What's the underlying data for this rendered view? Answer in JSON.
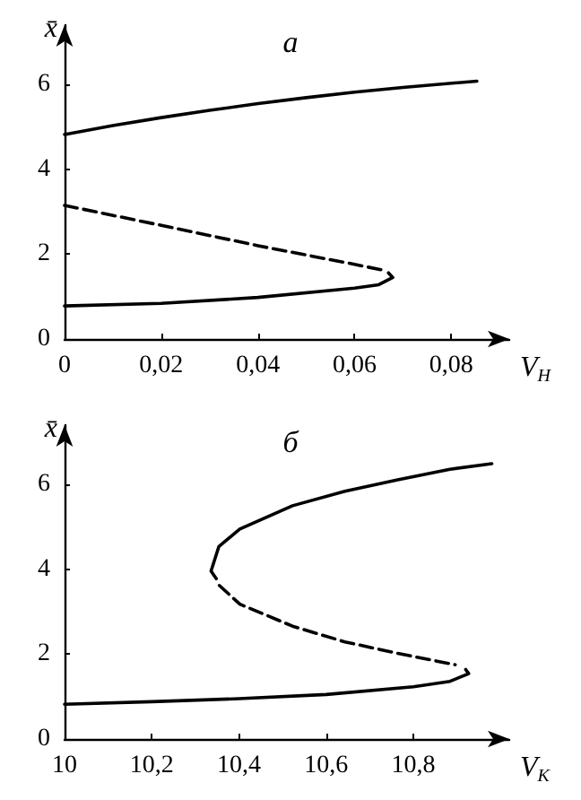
{
  "chart_data": [
    {
      "type": "line",
      "title": "а",
      "xlabel": "V$_{Н}$",
      "ylabel": "x̄",
      "marker": "none",
      "grid": false,
      "xlim": [
        0,
        0.092
      ],
      "ylim": [
        0,
        7.4
      ],
      "xticks": [
        0,
        {
          "value": 0.02,
          "label": "0,02"
        },
        {
          "value": 0.04,
          "label": "0,04"
        },
        {
          "value": 0.06,
          "label": "0,06"
        },
        {
          "value": 0.08,
          "label": "0,08"
        }
      ],
      "yticks": [
        0,
        2,
        4,
        6
      ],
      "series": [
        {
          "color": "#000000",
          "line_style": "solid",
          "x": [
            0,
            0.01,
            0.02,
            0.03,
            0.04,
            0.05,
            0.06,
            0.07,
            0.0853
          ],
          "values": [
            4.82,
            5.03,
            5.22,
            5.39,
            5.55,
            5.69,
            5.82,
            5.93,
            6.08
          ]
        },
        {
          "color": "#000000",
          "line_style": "dashed",
          "x": [
            0,
            0.02,
            0.04,
            0.06,
            0.066
          ],
          "values": [
            3.15,
            2.68,
            2.2,
            1.76,
            1.62
          ]
        },
        {
          "color": "#000000",
          "line_style": "solid",
          "x": [
            0,
            0.02,
            0.04,
            0.06,
            0.065,
            0.0679,
            0.067
          ],
          "values": [
            0.78,
            0.84,
            0.98,
            1.2,
            1.28,
            1.45,
            1.56
          ]
        }
      ]
    },
    {
      "type": "line",
      "title": "б",
      "xlabel": "V$_{К}$",
      "ylabel": "x̄",
      "marker": "none",
      "grid": false,
      "xlim": [
        10,
        11.02
      ],
      "ylim": [
        0,
        7.4
      ],
      "xticks": [
        10,
        {
          "value": 10.2,
          "label": "10,2"
        },
        {
          "value": 10.4,
          "label": "10,4"
        },
        {
          "value": 10.6,
          "label": "10,6"
        },
        {
          "value": 10.8,
          "label": "10,8"
        }
      ],
      "yticks": [
        0,
        2,
        4,
        6
      ],
      "series": [
        {
          "color": "#000000",
          "line_style": "solid",
          "x": [
            10.348,
            10.336,
            10.354,
            10.402,
            10.523,
            10.643,
            10.764,
            10.884,
            10.98
          ],
          "values": [
            3.78,
            3.96,
            4.54,
            4.95,
            5.5,
            5.84,
            6.11,
            6.36,
            6.49
          ]
        },
        {
          "color": "#000000",
          "line_style": "dashed",
          "x": [
            10.355,
            10.402,
            10.523,
            10.643,
            10.764,
            10.896
          ],
          "values": [
            3.62,
            3.18,
            2.66,
            2.29,
            2.02,
            1.75
          ]
        },
        {
          "color": "#000000",
          "line_style": "solid",
          "x": [
            10,
            10.2,
            10.4,
            10.6,
            10.8,
            10.884,
            10.927,
            10.92
          ],
          "values": [
            0.82,
            0.88,
            0.95,
            1.05,
            1.23,
            1.36,
            1.54,
            1.64
          ]
        }
      ]
    }
  ]
}
